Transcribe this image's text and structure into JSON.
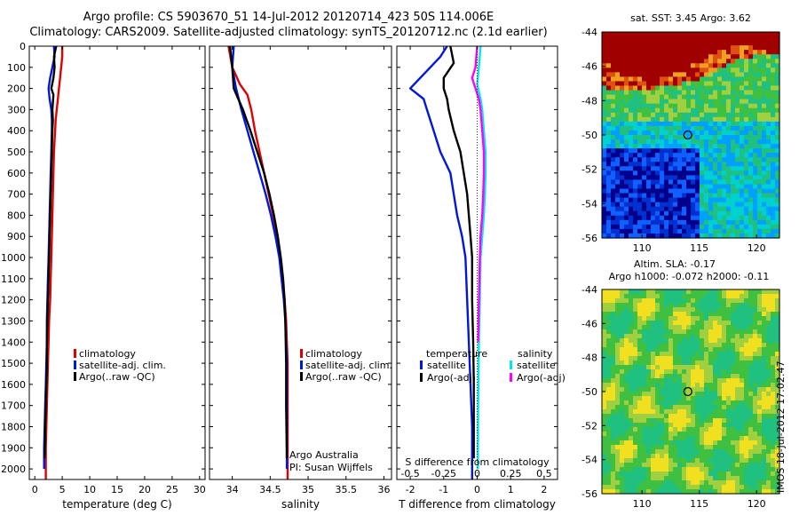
{
  "header": {
    "title_line1": "Argo profile: CS 5903670_51 14-Jul-2012 20120714_423 50S 114.006E",
    "title_line2": "Climatology: CARS2009. Satellite-adjusted climatology: synTS_20120712.nc (2.1d earlier)"
  },
  "side_stamp": "IMOS 18-Jul-2012 17:02:47",
  "colors": {
    "climatology": "#e00000",
    "satellite": "#0018d8",
    "argo": "#000000",
    "sat_salt": "#00e8e8",
    "argo_salt": "#ff00ff"
  },
  "chart_data": [
    {
      "id": "temp",
      "type": "line",
      "xlabel": "temperature (deg C)",
      "xticks": [
        "0",
        "5",
        "10",
        "15",
        "20",
        "25",
        "30"
      ],
      "xlim": [
        -1,
        31
      ],
      "yticks": [
        "0",
        "100",
        "200",
        "300",
        "400",
        "500",
        "600",
        "700",
        "800",
        "900",
        "1000",
        "1100",
        "1200",
        "1300",
        "1400",
        "1500",
        "1600",
        "1700",
        "1800",
        "1900",
        "2000"
      ],
      "ylim": [
        2050,
        0
      ],
      "legend": [
        "climatology",
        "satellite-adj. clim.",
        "Argo(..raw -QC)"
      ],
      "series": [
        {
          "name": "climatology",
          "color": "#e00000",
          "x": [
            5.0,
            5.0,
            4.8,
            4.6,
            4.4,
            4.2,
            4.0,
            3.8,
            3.7,
            3.5,
            3.4,
            3.3,
            3.2,
            3.1,
            3.0,
            2.9,
            2.8,
            2.6,
            2.5,
            2.4,
            2.3,
            2.2,
            2.1,
            2.0,
            2.0
          ],
          "y": [
            0,
            50,
            100,
            150,
            200,
            250,
            300,
            350,
            400,
            500,
            600,
            700,
            800,
            900,
            1000,
            1100,
            1200,
            1300,
            1400,
            1500,
            1600,
            1700,
            1800,
            1900,
            2050
          ]
        },
        {
          "name": "satellite-adj. clim.",
          "color": "#0018d8",
          "x": [
            3.5,
            3.6,
            3.2,
            2.8,
            2.5,
            2.7,
            3.0,
            3.1,
            3.1,
            3.0,
            2.9,
            2.8,
            2.7,
            2.6,
            2.5,
            2.4,
            2.3,
            2.2,
            2.2,
            2.1,
            2.0,
            1.9,
            1.8,
            1.7,
            1.7
          ],
          "y": [
            0,
            50,
            100,
            150,
            200,
            250,
            300,
            350,
            400,
            500,
            600,
            700,
            800,
            900,
            1000,
            1100,
            1200,
            1300,
            1400,
            1500,
            1600,
            1700,
            1800,
            1900,
            2000
          ]
        },
        {
          "name": "Argo(..raw -QC)",
          "color": "#000000",
          "x": [
            3.9,
            3.5,
            3.6,
            3.4,
            3.0,
            3.4,
            3.2,
            3.3,
            3.2,
            3.1,
            3.0,
            2.9,
            2.8,
            2.7,
            2.6,
            2.5,
            2.4,
            2.3,
            2.2,
            2.2,
            2.1,
            2.0,
            1.9,
            1.8
          ],
          "y": [
            0,
            50,
            100,
            150,
            200,
            230,
            300,
            350,
            400,
            500,
            600,
            700,
            800,
            900,
            1000,
            1100,
            1200,
            1300,
            1400,
            1500,
            1600,
            1700,
            1800,
            1950
          ]
        }
      ]
    },
    {
      "id": "salt",
      "type": "line",
      "xlabel": "salinity",
      "xticks": [
        "34",
        "34.5",
        "35",
        "35.5",
        "36"
      ],
      "xlim": [
        33.7,
        36.1
      ],
      "ylim": [
        2050,
        0
      ],
      "legend": [
        "climatology",
        "satellite-adj. clim.",
        "Argo(..raw -QC)"
      ],
      "annotation": [
        "Argo Australia",
        "PI: Susan Wijffels"
      ],
      "series": [
        {
          "name": "climatology",
          "color": "#e00000",
          "x": [
            33.95,
            34.0,
            34.1,
            34.2,
            34.25,
            34.3,
            34.36,
            34.42,
            34.48,
            34.54,
            34.59,
            34.63,
            34.66,
            34.69,
            34.71,
            34.72,
            34.73,
            34.73,
            34.73,
            34.73
          ],
          "y": [
            0,
            100,
            180,
            230,
            300,
            400,
            500,
            600,
            700,
            800,
            900,
            1000,
            1100,
            1200,
            1300,
            1400,
            1500,
            1700,
            1900,
            2050
          ]
        },
        {
          "name": "satellite-adj. clim.",
          "color": "#0018d8",
          "x": [
            34.02,
            34.0,
            34.05,
            34.12,
            34.2,
            34.28,
            34.36,
            34.44,
            34.51,
            34.57,
            34.62,
            34.65,
            34.68,
            34.7,
            34.71,
            34.72,
            34.72,
            34.72,
            34.72
          ],
          "y": [
            0,
            100,
            200,
            300,
            400,
            500,
            600,
            700,
            800,
            900,
            1000,
            1100,
            1200,
            1300,
            1400,
            1500,
            1700,
            1900,
            2000
          ]
        },
        {
          "name": "Argo(..raw -QC)",
          "color": "#000000",
          "x": [
            33.97,
            34.0,
            34.02,
            34.08,
            34.14,
            34.24,
            34.33,
            34.42,
            34.49,
            34.55,
            34.6,
            34.64,
            34.67,
            34.69,
            34.7,
            34.71,
            34.71,
            34.72
          ],
          "y": [
            0,
            100,
            200,
            250,
            300,
            400,
            500,
            600,
            700,
            800,
            900,
            1000,
            1100,
            1200,
            1300,
            1500,
            1700,
            1950
          ]
        }
      ]
    },
    {
      "id": "diff",
      "type": "line",
      "xlabel": "T difference from climatology",
      "top_label": "S difference from climatology",
      "xticks": [
        "-2",
        "-1",
        "0",
        "1",
        "2"
      ],
      "xlim": [
        -2.4,
        2.4
      ],
      "sticks": [
        "-0.5",
        "-0.25",
        "0",
        "0.25",
        "0.5"
      ],
      "ylim": [
        2050,
        0
      ],
      "legend_headers": [
        "temperature",
        "salinity"
      ],
      "legend_left": [
        "satellite",
        "Argo(-adj)"
      ],
      "legend_right": [
        "satellite",
        "Argo(-adj)"
      ],
      "series": [
        {
          "name": "satellite",
          "color": "#0018d8",
          "x": [
            -0.9,
            -1.1,
            -1.7,
            -2.0,
            -1.6,
            -1.5,
            -1.3,
            -1.1,
            -0.8,
            -0.7,
            -0.6,
            -0.45,
            -0.35,
            -0.3,
            -0.25,
            -0.2,
            -0.15,
            -0.15,
            -0.15
          ],
          "y": [
            0,
            50,
            150,
            200,
            250,
            300,
            400,
            500,
            600,
            700,
            800,
            900,
            1000,
            1200,
            1400,
            1600,
            1800,
            2000,
            2050
          ]
        },
        {
          "name": "Argo(-adj)",
          "color": "#000000",
          "x": [
            -0.8,
            -0.7,
            -1.0,
            -1.0,
            -0.9,
            -0.85,
            -0.7,
            -0.5,
            -0.4,
            -0.3,
            -0.25,
            -0.2,
            -0.15,
            -0.15,
            -0.12,
            -0.1,
            -0.1
          ],
          "y": [
            0,
            80,
            150,
            200,
            250,
            300,
            400,
            500,
            600,
            700,
            800,
            900,
            1000,
            1200,
            1400,
            1600,
            1950
          ]
        },
        {
          "name": "satellite",
          "color": "#00e8e8",
          "x": [
            0.1,
            0.05,
            0.0,
            0.1,
            0.15,
            0.2,
            0.25,
            0.25,
            0.23,
            0.2,
            0.15,
            0.1,
            0.08,
            0.05,
            0.03,
            0.02
          ],
          "y": [
            0,
            100,
            180,
            250,
            300,
            400,
            500,
            600,
            700,
            800,
            900,
            1000,
            1200,
            1400,
            1700,
            2000
          ]
        },
        {
          "name": "Argo(-adj)",
          "color": "#ff00ff",
          "x": [
            0.0,
            -0.05,
            -0.15,
            -0.05,
            0.05,
            0.1,
            0.15,
            0.2,
            0.2,
            0.18,
            0.15,
            0.1,
            0.08,
            0.05,
            0.03
          ],
          "y": [
            0,
            100,
            150,
            200,
            250,
            300,
            400,
            500,
            600,
            700,
            800,
            900,
            1000,
            1200,
            1400
          ]
        }
      ]
    },
    {
      "id": "sst_map",
      "type": "heatmap",
      "title": "sat. SST: 3.45 Argo: 3.62",
      "xticks": [
        "110",
        "115",
        "120"
      ],
      "xlim": [
        106.5,
        122
      ],
      "yticks": [
        "-44",
        "-46",
        "-48",
        "-50",
        "-52",
        "-54",
        "-56"
      ],
      "ylim": [
        -56,
        -44
      ],
      "marker": [
        114,
        -50
      ]
    },
    {
      "id": "sla_map",
      "type": "heatmap",
      "title_line1": "Altim. SLA: -0.17",
      "title_line2": "Argo h1000: -0.072 h2000: -0.11",
      "xticks": [
        "110",
        "115",
        "120"
      ],
      "xlim": [
        106.5,
        122
      ],
      "yticks": [
        "-44",
        "-46",
        "-48",
        "-50",
        "-52",
        "-54",
        "-56"
      ],
      "ylim": [
        -56,
        -44
      ],
      "marker": [
        114,
        -50
      ]
    }
  ]
}
